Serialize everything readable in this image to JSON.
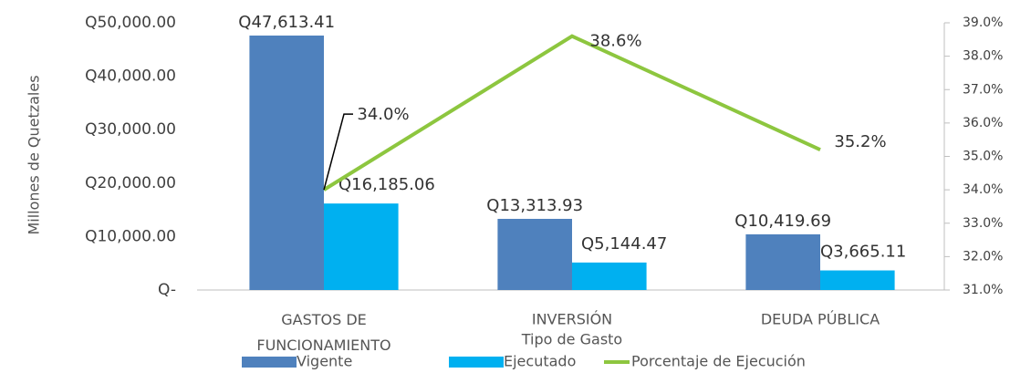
{
  "chart_data": {
    "type": "bar",
    "y_label": "Millones de Quetzales",
    "x_label": "Tipo de Gasto",
    "categories": [
      "GASTOS DE FUNCIONAMIENTO",
      "INVERSIÓN",
      "DEUDA PÚBLICA"
    ],
    "series": [
      {
        "name": "Vigente",
        "color": "#4f81bd",
        "values": [
          47613.41,
          13313.93,
          10419.69
        ],
        "value_labels": [
          "Q47,613.41",
          "Q13,313.93",
          "Q10,419.69"
        ]
      },
      {
        "name": "Ejecutado",
        "color": "#00b0f0",
        "values": [
          16185.06,
          5144.47,
          3665.11
        ],
        "value_labels": [
          "Q16,185.06",
          "Q5,144.47",
          "Q3,665.11"
        ]
      },
      {
        "name": "Porcentaje de Ejecución",
        "type": "line",
        "axis": "y2",
        "color": "#8dc63f",
        "values": [
          34.0,
          38.6,
          35.2
        ],
        "value_labels": [
          "34.0%",
          "38.6%",
          "35.2%"
        ]
      }
    ],
    "ylim": [
      0,
      50000
    ],
    "yticks": [
      {
        "value": 0,
        "label": "Q-"
      },
      {
        "value": 10000,
        "label": "Q10,000.00"
      },
      {
        "value": 20000,
        "label": "Q20,000.00"
      },
      {
        "value": 30000,
        "label": "Q30,000.00"
      },
      {
        "value": 40000,
        "label": "Q40,000.00"
      },
      {
        "value": 50000,
        "label": "Q50,000.00"
      }
    ],
    "y2lim": [
      31,
      39
    ],
    "y2ticks": [
      {
        "value": 31,
        "label": "31.0%"
      },
      {
        "value": 32,
        "label": "32.0%"
      },
      {
        "value": 33,
        "label": "33.0%"
      },
      {
        "value": 34,
        "label": "34.0%"
      },
      {
        "value": 35,
        "label": "35.0%"
      },
      {
        "value": 36,
        "label": "36.0%"
      },
      {
        "value": 37,
        "label": "37.0%"
      },
      {
        "value": 38,
        "label": "38.0%"
      },
      {
        "value": 39,
        "label": "39.0%"
      }
    ],
    "legend": "bottom"
  }
}
